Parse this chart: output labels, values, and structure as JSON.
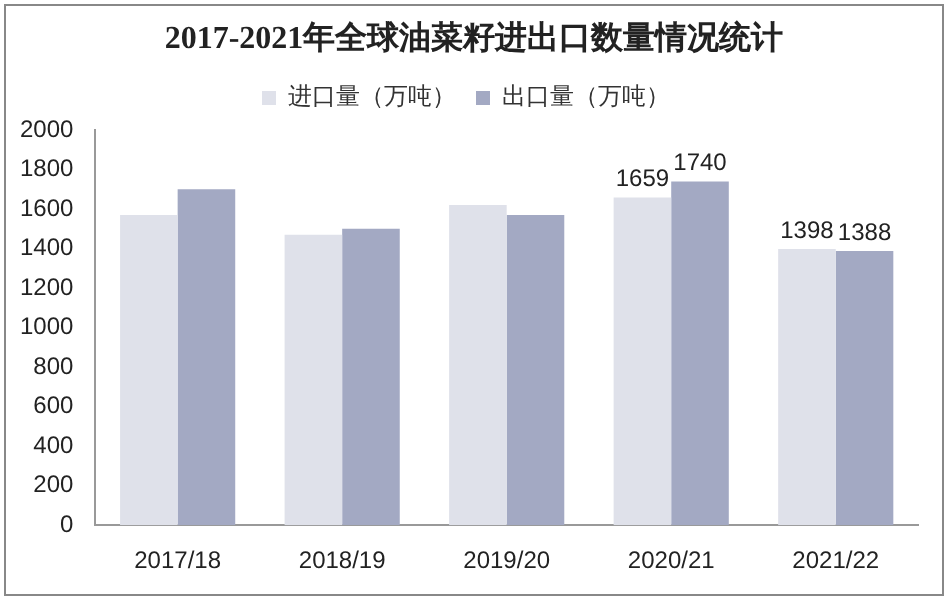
{
  "chart_data": {
    "type": "bar",
    "title": "2017-2021年全球油菜籽进出口数量情况统计",
    "categories": [
      "2017/18",
      "2018/19",
      "2019/20",
      "2020/21",
      "2021/22"
    ],
    "series": [
      {
        "name": "进口量（万吨）",
        "color": "#dfe1ea",
        "values": [
          1570,
          1470,
          1620,
          1659,
          1398
        ],
        "value_labels": [
          null,
          null,
          null,
          "1659",
          "1398"
        ]
      },
      {
        "name": "出口量（万吨）",
        "color": "#a3a9c3",
        "values": [
          1700,
          1500,
          1570,
          1740,
          1388
        ],
        "value_labels": [
          null,
          null,
          null,
          "1740",
          "1388"
        ]
      }
    ],
    "ylim": [
      0,
      2000
    ],
    "yticks": [
      0,
      200,
      400,
      600,
      800,
      1000,
      1200,
      1400,
      1600,
      1800,
      2000
    ],
    "grid": false,
    "legend": "top"
  }
}
